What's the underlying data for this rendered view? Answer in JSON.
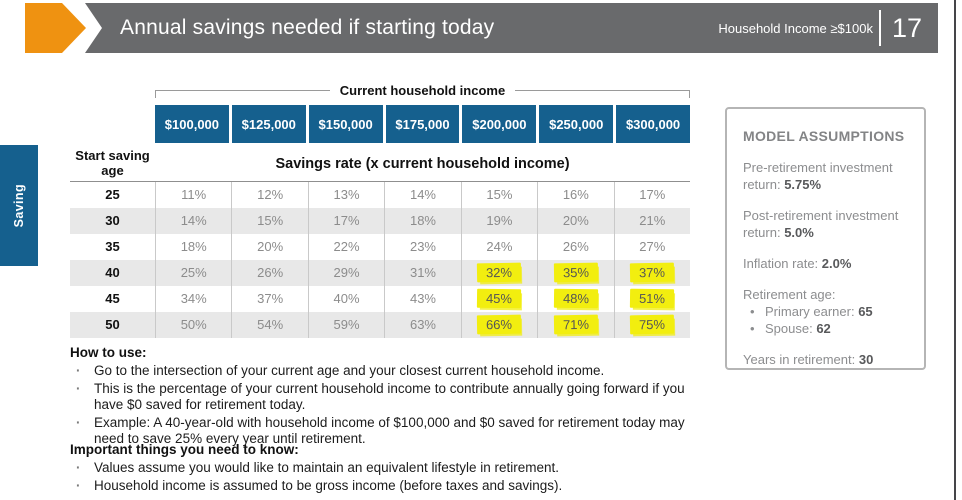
{
  "header": {
    "title": "Annual savings needed if starting today",
    "subtitle": "Household Income ≥$100k",
    "page_number": "17"
  },
  "side_tab": {
    "label": "Saving"
  },
  "colors": {
    "accent_orange": "#EF9211",
    "header_gray": "#696A6C",
    "brand_blue": "#15608E",
    "highlight_yellow": "#F2EE0F",
    "shaded_row": "#E8E8E8"
  },
  "table": {
    "bracket_label": "Current household income",
    "row_header": "Start saving age",
    "subheader": "Savings rate (x current household income)",
    "income_columns": [
      "$100,000",
      "$125,000",
      "$150,000",
      "$175,000",
      "$200,000",
      "$250,000",
      "$300,000"
    ],
    "rows": [
      {
        "age": "25",
        "values": [
          "11%",
          "12%",
          "13%",
          "14%",
          "15%",
          "16%",
          "17%"
        ],
        "shaded": false,
        "highlight_cols": []
      },
      {
        "age": "30",
        "values": [
          "14%",
          "15%",
          "17%",
          "18%",
          "19%",
          "20%",
          "21%"
        ],
        "shaded": true,
        "highlight_cols": []
      },
      {
        "age": "35",
        "values": [
          "18%",
          "20%",
          "22%",
          "23%",
          "24%",
          "26%",
          "27%"
        ],
        "shaded": false,
        "highlight_cols": []
      },
      {
        "age": "40",
        "values": [
          "25%",
          "26%",
          "29%",
          "31%",
          "32%",
          "35%",
          "37%"
        ],
        "shaded": true,
        "highlight_cols": [
          4,
          5,
          6
        ]
      },
      {
        "age": "45",
        "values": [
          "34%",
          "37%",
          "40%",
          "43%",
          "45%",
          "48%",
          "51%"
        ],
        "shaded": false,
        "highlight_cols": [
          4,
          5,
          6
        ]
      },
      {
        "age": "50",
        "values": [
          "50%",
          "54%",
          "59%",
          "63%",
          "66%",
          "71%",
          "75%"
        ],
        "shaded": true,
        "highlight_cols": [
          4,
          5,
          6
        ]
      }
    ]
  },
  "how_to_use": {
    "heading": "How to use:",
    "bullets": [
      "Go to the intersection of your current age and your closest current household income.",
      "This is the percentage of your current household income to contribute annually going forward if you have $0 saved for retirement today.",
      "Example: A 40-year-old with household income of $100,000 and $0 saved for retirement today may need to save 25% every year until retirement."
    ]
  },
  "important": {
    "heading": "Important things you need to know:",
    "bullets": [
      "Values assume you would like to maintain an equivalent lifestyle in retirement.",
      "Household income is assumed to be gross income (before taxes and savings)."
    ]
  },
  "assumptions": {
    "title": "MODEL ASSUMPTIONS",
    "items": [
      {
        "label": "Pre-retirement investment return: ",
        "value": "5.75%"
      },
      {
        "label": "Post-retirement investment return: ",
        "value": "5.0%"
      },
      {
        "label": "Inflation rate: ",
        "value": "2.0%"
      }
    ],
    "retirement_age": {
      "label": "Retirement age:",
      "bullets": [
        {
          "label": "Primary earner: ",
          "value": "65"
        },
        {
          "label": "Spouse: ",
          "value": "62"
        }
      ]
    },
    "years_in_retirement": {
      "label": "Years in retirement: ",
      "value": "30"
    }
  }
}
